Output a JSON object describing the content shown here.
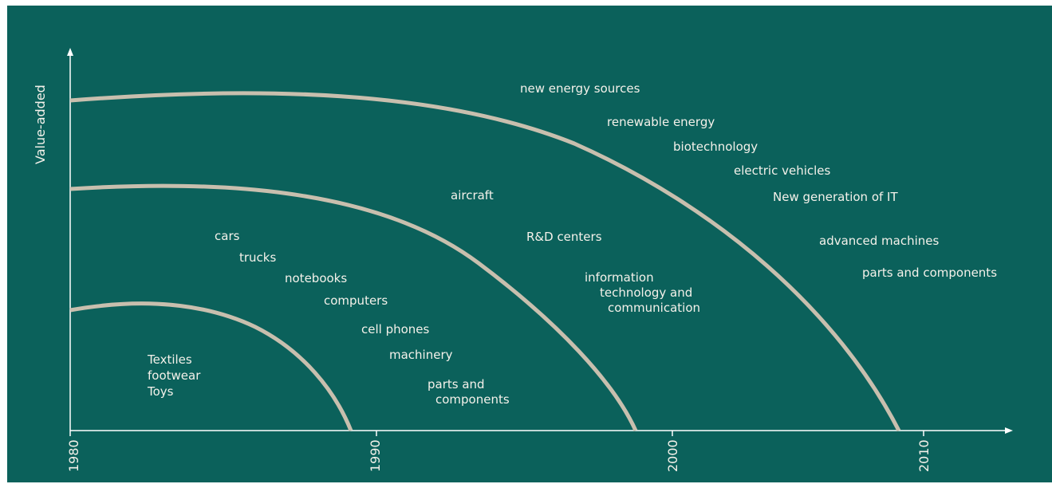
{
  "colors": {
    "background": "#0b615b",
    "curve": "#c8bfae",
    "text": "#f4f1ea",
    "axis": "#ffffff"
  },
  "axes": {
    "y_title": "Value-added",
    "x_ticks": [
      "1980",
      "1990",
      "2000",
      "2010"
    ]
  },
  "curves": [
    {
      "name": "low-value-curve",
      "labels": [
        "Textiles",
        "footwear",
        "Toys"
      ]
    },
    {
      "name": "mid-value-curve",
      "labels": [
        "cars",
        "trucks",
        "notebooks",
        "computers",
        "cell phones",
        "machinery",
        "parts and",
        "components"
      ]
    },
    {
      "name": "high-value-curve",
      "labels": [
        "aircraft",
        "R&D centers",
        "information",
        "technology and",
        "communication"
      ]
    },
    {
      "name": "top-value-curve",
      "labels": [
        "new energy sources",
        "renewable energy",
        "biotechnology",
        "electric vehicles",
        "New generation of IT",
        "advanced machines",
        "parts and components"
      ]
    }
  ]
}
